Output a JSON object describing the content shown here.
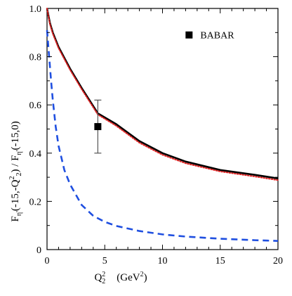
{
  "chart_data": {
    "type": "line",
    "xlabel": {
      "main": "Q",
      "sup": "2",
      "sub": "2",
      "unit_prefix": "(GeV",
      "unit_sup": "2",
      "unit_suffix": ")"
    },
    "ylabel": {
      "parts": [
        {
          "t": "F",
          "k": "n"
        },
        {
          "t": "η'",
          "k": "sub"
        },
        {
          "t": "(-15,-Q",
          "k": "n"
        },
        {
          "t": "2",
          "k": "sup"
        },
        {
          "t": "2",
          "k": "sub"
        },
        {
          "t": ") / F",
          "k": "n"
        },
        {
          "t": "η'",
          "k": "sub"
        },
        {
          "t": "(-15,0)",
          "k": "n"
        }
      ]
    },
    "xlim": [
      0,
      20
    ],
    "ylim": [
      0,
      1.0
    ],
    "x_ticks": [
      0,
      5,
      10,
      15,
      20
    ],
    "x_tick_labels": [
      "0",
      "5",
      "10",
      "15",
      "20"
    ],
    "y_ticks": [
      0,
      0.2,
      0.4,
      0.6,
      0.8,
      1.0
    ],
    "y_tick_labels": [
      "0",
      "0.2",
      "0.4",
      "0.6",
      "0.8",
      "1.0"
    ],
    "grid": false,
    "legend_position": "top-right",
    "colors": {
      "solid": "#000000",
      "dotted": "#dd2222",
      "dashed": "#1f4fe0",
      "marker": "#000000"
    },
    "series": [
      {
        "style": "solid",
        "x": [
          0,
          0.25,
          0.5,
          1,
          2,
          3,
          4.4,
          6,
          8,
          10,
          12,
          15,
          18,
          20
        ],
        "y": [
          1.0,
          0.94,
          0.9,
          0.84,
          0.75,
          0.67,
          0.565,
          0.52,
          0.45,
          0.4,
          0.365,
          0.33,
          0.31,
          0.295
        ]
      },
      {
        "style": "dotted",
        "x": [
          0,
          0.25,
          0.5,
          1,
          2,
          3,
          4.4,
          6,
          8,
          10,
          12,
          15,
          18,
          20
        ],
        "y": [
          1.0,
          0.935,
          0.895,
          0.835,
          0.745,
          0.665,
          0.56,
          0.513,
          0.443,
          0.393,
          0.358,
          0.324,
          0.303,
          0.288
        ]
      },
      {
        "style": "dashed",
        "x": [
          0,
          0.1,
          0.2,
          0.35,
          0.5,
          0.75,
          1,
          1.5,
          2,
          3,
          4,
          5,
          6,
          8,
          10,
          12,
          15,
          18,
          20
        ],
        "y": [
          0.91,
          0.85,
          0.79,
          0.7,
          0.62,
          0.51,
          0.43,
          0.33,
          0.27,
          0.185,
          0.14,
          0.115,
          0.098,
          0.077,
          0.063,
          0.054,
          0.045,
          0.039,
          0.036
        ]
      }
    ],
    "data_points": [
      {
        "name": "BABAR",
        "x": 4.4,
        "y": 0.51,
        "err_low": 0.4,
        "err_high": 0.62
      }
    ],
    "legend": [
      {
        "label": "BABAR",
        "marker": "square"
      }
    ]
  }
}
